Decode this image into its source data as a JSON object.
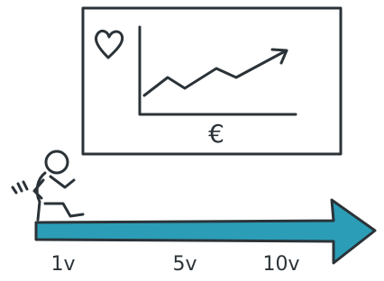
{
  "board": {
    "currency": "€"
  },
  "timeline": {
    "labels": [
      "1v",
      "5v",
      "10v"
    ]
  }
}
